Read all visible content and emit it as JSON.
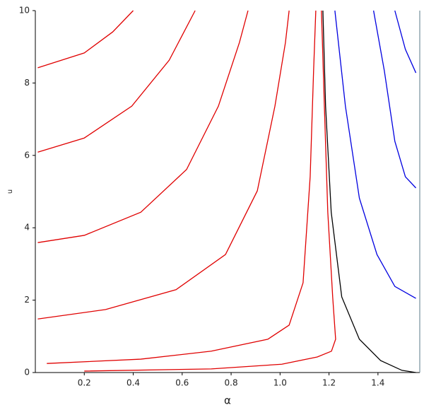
{
  "chart_data": {
    "type": "line",
    "x_label": "α",
    "y_label": "u",
    "xlim": [
      0,
      1.5708
    ],
    "ylim": [
      0,
      10
    ],
    "xticks": [
      0.2,
      0.4,
      0.6,
      0.8,
      {
        "value": 1,
        "label": "1.0"
      },
      1.2,
      1.4
    ],
    "yticks": [
      0,
      2,
      4,
      6,
      8,
      10
    ],
    "grid": false,
    "series": [
      {
        "color": "#e00000",
        "x": [
          0.01,
          0.2,
          0.316,
          0.4
        ],
        "values": [
          8.42,
          8.83,
          9.41,
          10
        ]
      },
      {
        "color": "#e00000",
        "x": [
          0.01,
          0.2,
          0.394,
          0.547,
          0.653
        ],
        "values": [
          6.09,
          6.48,
          7.36,
          8.63,
          10
        ]
      },
      {
        "color": "#e00000",
        "x": [
          0.01,
          0.2,
          0.431,
          0.618,
          0.748,
          0.834,
          0.869
        ],
        "values": [
          3.59,
          3.79,
          4.43,
          5.61,
          7.36,
          9.12,
          10
        ]
      },
      {
        "color": "#e00000",
        "x": [
          0.01,
          0.287,
          0.575,
          0.777,
          0.907,
          0.979,
          1.022,
          1.037
        ],
        "values": [
          1.48,
          1.74,
          2.29,
          3.26,
          5.02,
          7.36,
          9.12,
          10
        ]
      },
      {
        "color": "#e00000",
        "x": [
          0.047,
          0.431,
          0.719,
          0.95,
          1.037,
          1.094,
          1.123,
          1.137,
          1.146
        ],
        "values": [
          0.25,
          0.37,
          0.59,
          0.92,
          1.31,
          2.48,
          5.41,
          8.34,
          10
        ]
      },
      {
        "color": "#e00000",
        "x": [
          0.2,
          0.719,
          1.007,
          1.152,
          1.21,
          1.227,
          1.215,
          1.195,
          1.181,
          1.169
        ],
        "values": [
          0.04,
          0.1,
          0.23,
          0.43,
          0.59,
          0.92,
          2.09,
          4.43,
          7.36,
          10
        ]
      },
      {
        "color": "#000000",
        "x": [
          1.175,
          1.186,
          1.209,
          1.252,
          1.324,
          1.411,
          1.498,
          1.555
        ],
        "values": [
          10,
          7.36,
          4.43,
          2.09,
          0.92,
          0.33,
          0.06,
          0
        ]
      },
      {
        "color": "#0000e0",
        "x": [
          1.224,
          1.267,
          1.324,
          1.396,
          1.469,
          1.555
        ],
        "values": [
          10,
          7.36,
          4.82,
          3.26,
          2.38,
          2.05
        ]
      },
      {
        "color": "#0000e0",
        "x": [
          1.382,
          1.426,
          1.469,
          1.512,
          1.555
        ],
        "values": [
          10,
          8.34,
          6.39,
          5.41,
          5.1
        ]
      },
      {
        "color": "#0000e0",
        "x": [
          1.469,
          1.512,
          1.555
        ],
        "values": [
          10,
          8.93,
          8.28
        ]
      }
    ]
  }
}
